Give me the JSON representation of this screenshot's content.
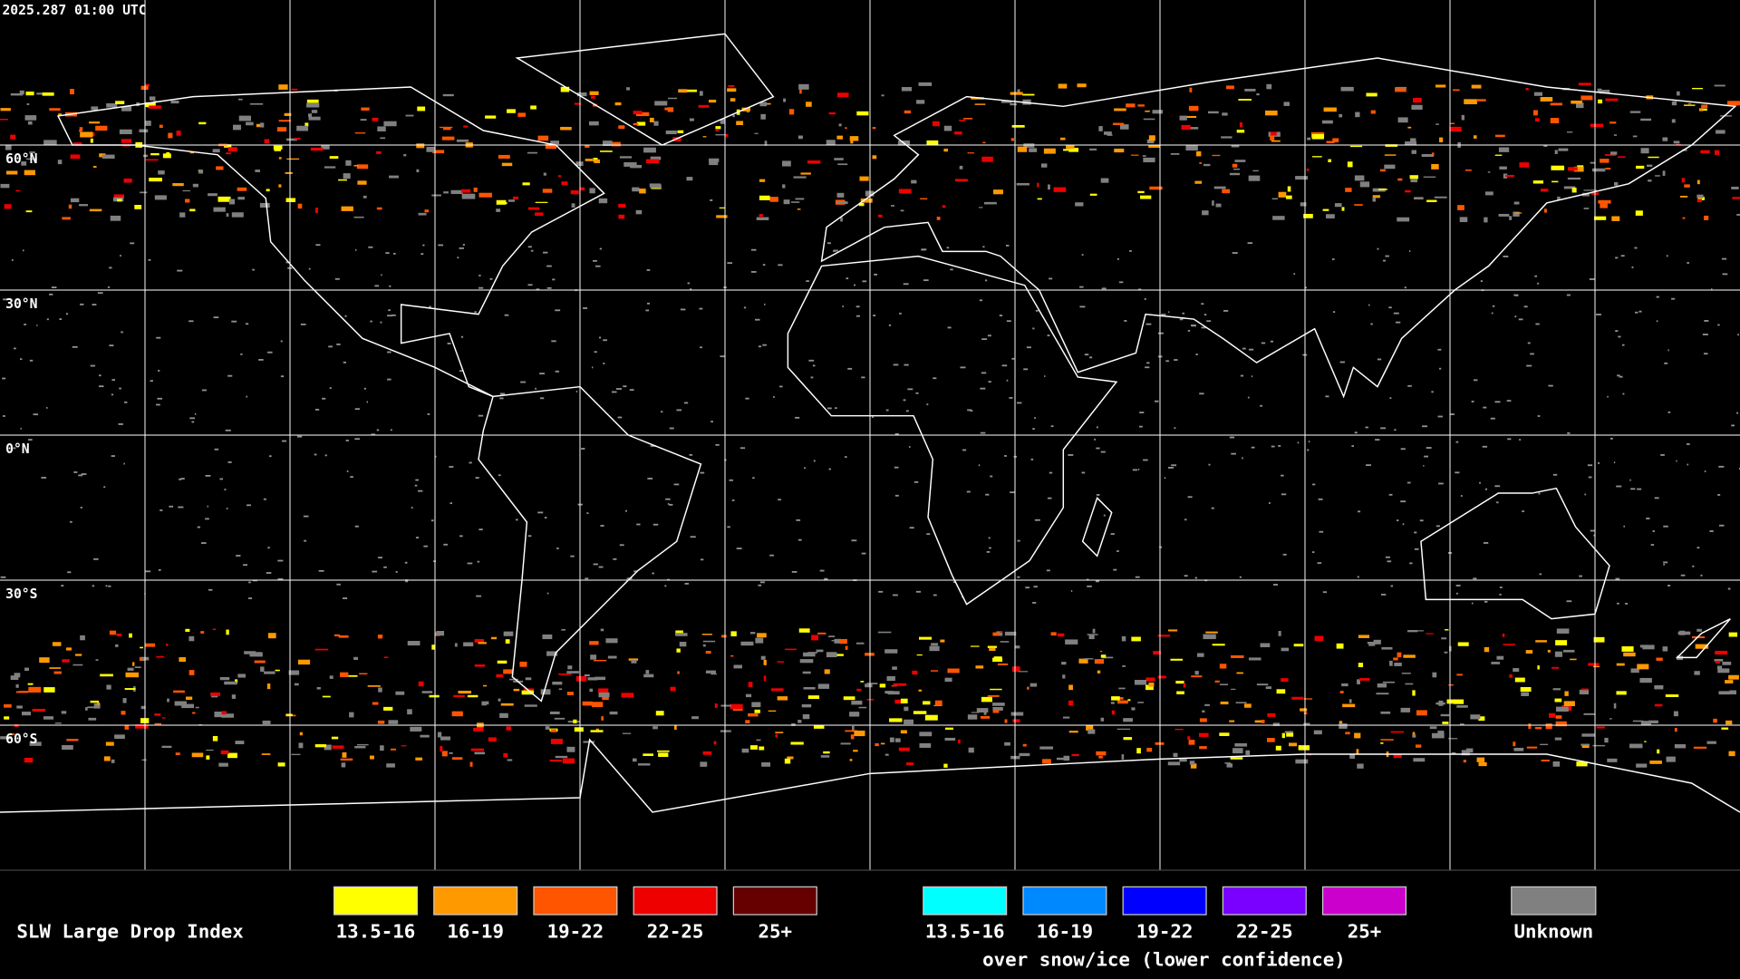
{
  "header": {
    "timestamp": "2025.287 01:00 UTC"
  },
  "map": {
    "lat_labels": [
      "60°N",
      "30°N",
      "0°N",
      "30°S",
      "60°S"
    ]
  },
  "legend": {
    "title": "SLW Large Drop Index",
    "items": [
      {
        "label": "13.5-16",
        "color": "#ffff00"
      },
      {
        "label": "16-19",
        "color": "#ff9900"
      },
      {
        "label": "19-22",
        "color": "#ff5500"
      },
      {
        "label": "22-25",
        "color": "#ee0000"
      },
      {
        "label": "25+",
        "color": "#660000"
      }
    ],
    "snow_items": [
      {
        "label": "13.5-16",
        "color": "#00ffff"
      },
      {
        "label": "16-19",
        "color": "#0088ff"
      },
      {
        "label": "19-22",
        "color": "#0000ff"
      },
      {
        "label": "22-25",
        "color": "#7a00ff"
      },
      {
        "label": "25+",
        "color": "#cc00cc"
      }
    ],
    "snow_caption": "over snow/ice (lower confidence)",
    "unknown": {
      "label": "Unknown",
      "color": "#808080"
    }
  }
}
